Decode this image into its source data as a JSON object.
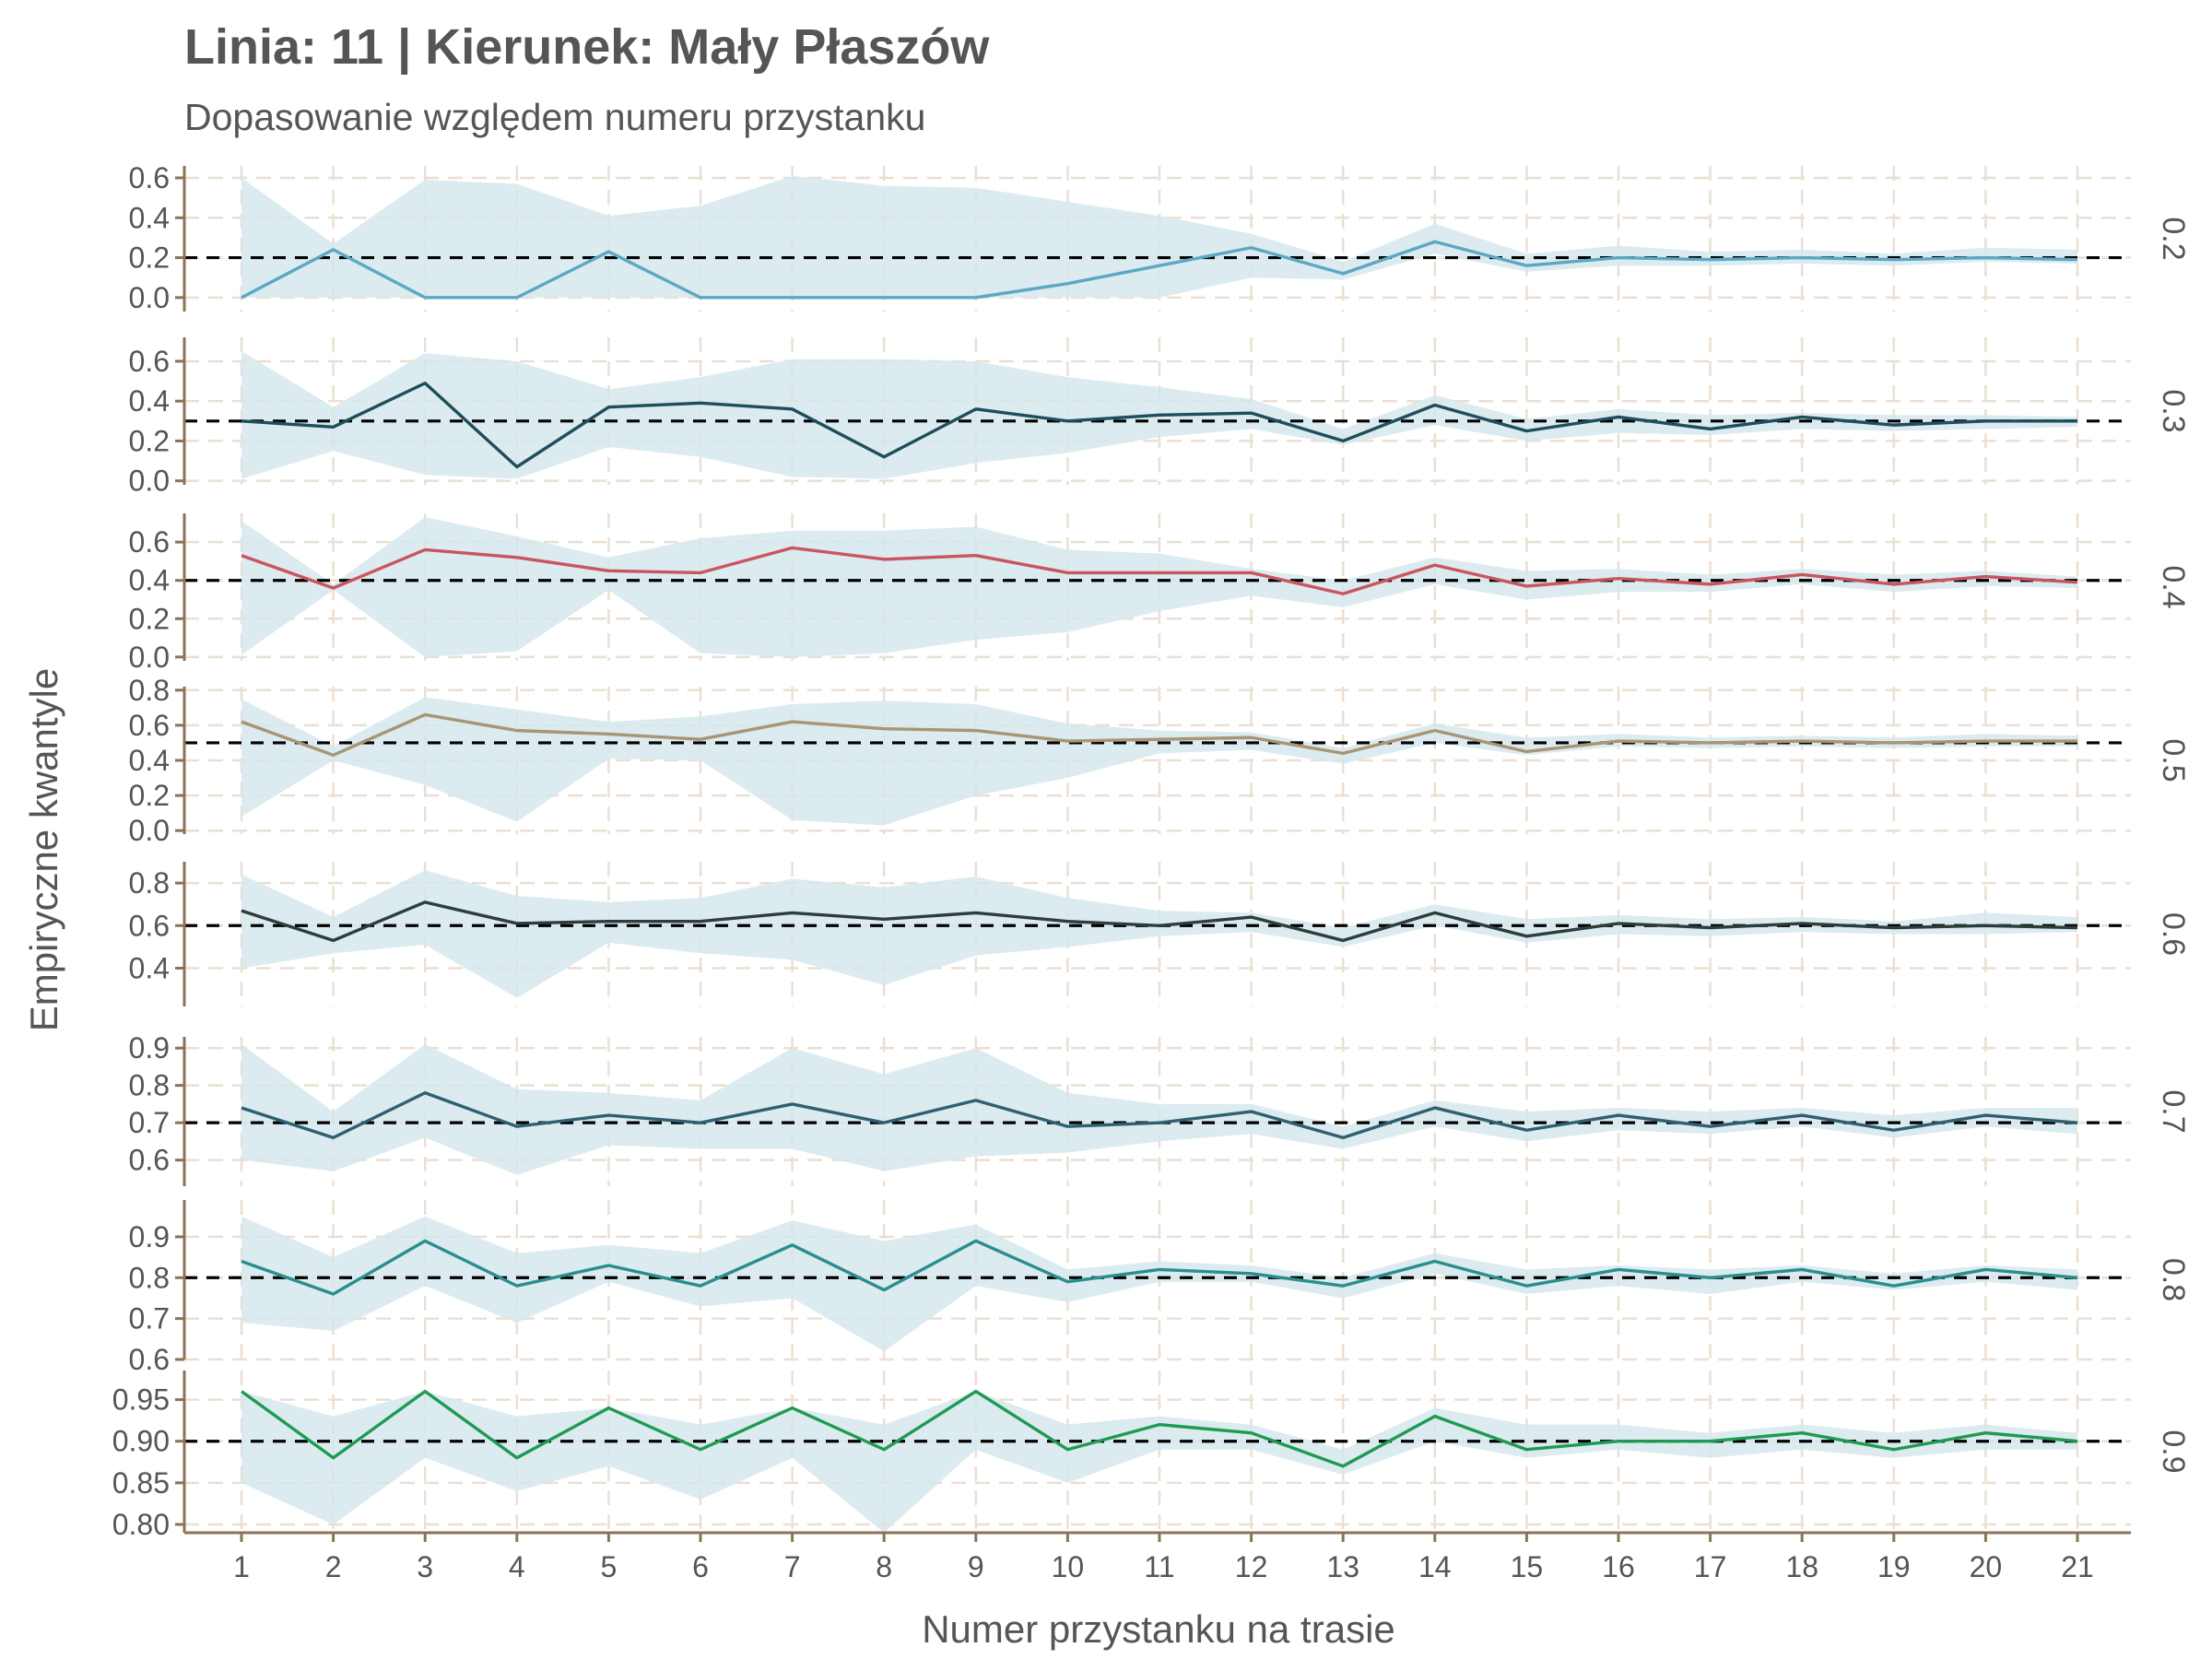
{
  "chart_data": {
    "type": "line",
    "title": "Linia: 11 | Kierunek: Mały Płaszów",
    "subtitle": "Dopasowanie względem numeru przystanku",
    "xlabel": "Numer przystanku na trasie",
    "ylabel": "Empiryczne kwantyle",
    "x": [
      1,
      2,
      3,
      4,
      5,
      6,
      7,
      8,
      9,
      10,
      11,
      12,
      13,
      14,
      15,
      16,
      17,
      18,
      19,
      20,
      21
    ],
    "grid": true,
    "colors": {
      "band": "#d6e8ec",
      "grid": "#eadfd2",
      "axis": "#8b7355",
      "reference": "#000000",
      "text": "#555555"
    },
    "panels": [
      {
        "label": "0.2",
        "reference": 0.2,
        "color": "#5ba8c4",
        "ylim": [
          -0.07,
          0.66
        ],
        "yticks": [
          {
            "v": 0.0,
            "t": "0.0"
          },
          {
            "v": 0.2,
            "t": "0.2"
          },
          {
            "v": 0.4,
            "t": "0.4"
          },
          {
            "v": 0.6,
            "t": "0.6"
          }
        ],
        "values": [
          0.0,
          0.24,
          0.0,
          0.0,
          0.23,
          0.0,
          0.0,
          0.0,
          0.0,
          0.07,
          0.16,
          0.25,
          0.12,
          0.28,
          0.16,
          0.2,
          0.19,
          0.2,
          0.19,
          0.2,
          0.19
        ],
        "lower": [
          0.0,
          0.0,
          0.0,
          0.0,
          0.0,
          0.0,
          0.0,
          0.0,
          0.0,
          0.0,
          0.0,
          0.1,
          0.09,
          0.22,
          0.13,
          0.16,
          0.16,
          0.17,
          0.16,
          0.18,
          0.17
        ],
        "upper": [
          0.6,
          0.27,
          0.59,
          0.57,
          0.41,
          0.46,
          0.61,
          0.56,
          0.55,
          0.48,
          0.41,
          0.32,
          0.18,
          0.37,
          0.22,
          0.26,
          0.23,
          0.24,
          0.22,
          0.25,
          0.24
        ]
      },
      {
        "label": "0.3",
        "reference": 0.3,
        "color": "#1e4d5c",
        "ylim": [
          -0.02,
          0.72
        ],
        "yticks": [
          {
            "v": 0.0,
            "t": "0.0"
          },
          {
            "v": 0.2,
            "t": "0.2"
          },
          {
            "v": 0.4,
            "t": "0.4"
          },
          {
            "v": 0.6,
            "t": "0.6"
          }
        ],
        "values": [
          0.3,
          0.27,
          0.49,
          0.07,
          0.37,
          0.39,
          0.36,
          0.12,
          0.36,
          0.3,
          0.33,
          0.34,
          0.2,
          0.38,
          0.25,
          0.32,
          0.26,
          0.32,
          0.28,
          0.3,
          0.3
        ],
        "lower": [
          0.01,
          0.15,
          0.03,
          0.01,
          0.17,
          0.12,
          0.02,
          0.01,
          0.09,
          0.14,
          0.22,
          0.26,
          0.18,
          0.28,
          0.2,
          0.24,
          0.23,
          0.26,
          0.25,
          0.26,
          0.27
        ],
        "upper": [
          0.65,
          0.37,
          0.64,
          0.6,
          0.46,
          0.52,
          0.61,
          0.61,
          0.6,
          0.52,
          0.47,
          0.41,
          0.26,
          0.43,
          0.31,
          0.36,
          0.33,
          0.34,
          0.33,
          0.33,
          0.32
        ]
      },
      {
        "label": "0.4",
        "reference": 0.4,
        "color": "#c95560",
        "ylim": [
          -0.02,
          0.75
        ],
        "yticks": [
          {
            "v": 0.0,
            "t": "0.0"
          },
          {
            "v": 0.2,
            "t": "0.2"
          },
          {
            "v": 0.4,
            "t": "0.4"
          },
          {
            "v": 0.6,
            "t": "0.6"
          }
        ],
        "values": [
          0.53,
          0.36,
          0.56,
          0.52,
          0.45,
          0.44,
          0.57,
          0.51,
          0.53,
          0.44,
          0.44,
          0.44,
          0.33,
          0.48,
          0.37,
          0.41,
          0.38,
          0.43,
          0.38,
          0.42,
          0.39
        ],
        "lower": [
          0.01,
          0.35,
          0.0,
          0.03,
          0.35,
          0.02,
          0.0,
          0.02,
          0.09,
          0.13,
          0.24,
          0.32,
          0.26,
          0.38,
          0.3,
          0.34,
          0.34,
          0.38,
          0.34,
          0.37,
          0.36
        ],
        "upper": [
          0.71,
          0.38,
          0.73,
          0.63,
          0.52,
          0.62,
          0.66,
          0.66,
          0.68,
          0.56,
          0.54,
          0.46,
          0.4,
          0.52,
          0.45,
          0.46,
          0.43,
          0.46,
          0.43,
          0.45,
          0.42
        ]
      },
      {
        "label": "0.5",
        "reference": 0.5,
        "color": "#a89574",
        "ylim": [
          -0.02,
          0.82
        ],
        "yticks": [
          {
            "v": 0.0,
            "t": "0.0"
          },
          {
            "v": 0.2,
            "t": "0.2"
          },
          {
            "v": 0.4,
            "t": "0.4"
          },
          {
            "v": 0.6,
            "t": "0.6"
          },
          {
            "v": 0.8,
            "t": "0.8"
          }
        ],
        "values": [
          0.62,
          0.43,
          0.66,
          0.57,
          0.55,
          0.52,
          0.62,
          0.58,
          0.57,
          0.51,
          0.52,
          0.53,
          0.44,
          0.57,
          0.45,
          0.51,
          0.5,
          0.51,
          0.5,
          0.51,
          0.51
        ],
        "lower": [
          0.08,
          0.4,
          0.26,
          0.05,
          0.41,
          0.4,
          0.06,
          0.03,
          0.2,
          0.3,
          0.44,
          0.46,
          0.38,
          0.5,
          0.43,
          0.48,
          0.47,
          0.48,
          0.47,
          0.48,
          0.48
        ],
        "upper": [
          0.75,
          0.48,
          0.76,
          0.69,
          0.62,
          0.65,
          0.72,
          0.74,
          0.72,
          0.61,
          0.57,
          0.56,
          0.47,
          0.61,
          0.53,
          0.55,
          0.53,
          0.54,
          0.53,
          0.55,
          0.54
        ]
      },
      {
        "label": "0.6",
        "reference": 0.6,
        "color": "#2c3e3c",
        "ylim": [
          0.22,
          0.9
        ],
        "yticks": [
          {
            "v": 0.4,
            "t": "0.4"
          },
          {
            "v": 0.6,
            "t": "0.6"
          },
          {
            "v": 0.8,
            "t": "0.8"
          }
        ],
        "values": [
          0.67,
          0.53,
          0.71,
          0.61,
          0.62,
          0.62,
          0.66,
          0.63,
          0.66,
          0.62,
          0.6,
          0.64,
          0.53,
          0.66,
          0.55,
          0.61,
          0.59,
          0.61,
          0.59,
          0.6,
          0.59
        ],
        "lower": [
          0.4,
          0.47,
          0.51,
          0.26,
          0.52,
          0.47,
          0.44,
          0.32,
          0.46,
          0.5,
          0.55,
          0.57,
          0.5,
          0.6,
          0.52,
          0.56,
          0.55,
          0.57,
          0.56,
          0.56,
          0.57
        ],
        "upper": [
          0.84,
          0.64,
          0.86,
          0.74,
          0.71,
          0.73,
          0.82,
          0.78,
          0.83,
          0.73,
          0.67,
          0.66,
          0.59,
          0.7,
          0.63,
          0.65,
          0.63,
          0.64,
          0.62,
          0.66,
          0.64
        ]
      },
      {
        "label": "0.7",
        "reference": 0.7,
        "color": "#2f5f73",
        "ylim": [
          0.53,
          0.93
        ],
        "yticks": [
          {
            "v": 0.6,
            "t": "0.6"
          },
          {
            "v": 0.7,
            "t": "0.7"
          },
          {
            "v": 0.8,
            "t": "0.8"
          },
          {
            "v": 0.9,
            "t": "0.9"
          }
        ],
        "values": [
          0.74,
          0.66,
          0.78,
          0.69,
          0.72,
          0.7,
          0.75,
          0.7,
          0.76,
          0.69,
          0.7,
          0.73,
          0.66,
          0.74,
          0.68,
          0.72,
          0.69,
          0.72,
          0.68,
          0.72,
          0.7
        ],
        "lower": [
          0.6,
          0.57,
          0.66,
          0.56,
          0.64,
          0.63,
          0.63,
          0.57,
          0.61,
          0.62,
          0.65,
          0.67,
          0.63,
          0.69,
          0.65,
          0.68,
          0.67,
          0.69,
          0.66,
          0.69,
          0.67
        ],
        "upper": [
          0.91,
          0.73,
          0.91,
          0.79,
          0.78,
          0.76,
          0.9,
          0.83,
          0.9,
          0.78,
          0.75,
          0.75,
          0.69,
          0.76,
          0.73,
          0.74,
          0.73,
          0.74,
          0.72,
          0.74,
          0.74
        ]
      },
      {
        "label": "0.8",
        "reference": 0.8,
        "color": "#2a8e8e",
        "ylim": [
          0.6,
          0.99
        ],
        "yticks": [
          {
            "v": 0.6,
            "t": "0.6"
          },
          {
            "v": 0.7,
            "t": "0.7"
          },
          {
            "v": 0.8,
            "t": "0.8"
          },
          {
            "v": 0.9,
            "t": "0.9"
          }
        ],
        "values": [
          0.84,
          0.76,
          0.89,
          0.78,
          0.83,
          0.78,
          0.88,
          0.77,
          0.89,
          0.79,
          0.82,
          0.81,
          0.78,
          0.84,
          0.78,
          0.82,
          0.8,
          0.82,
          0.78,
          0.82,
          0.8
        ],
        "lower": [
          0.69,
          0.67,
          0.78,
          0.69,
          0.79,
          0.73,
          0.75,
          0.62,
          0.78,
          0.74,
          0.79,
          0.79,
          0.75,
          0.81,
          0.76,
          0.78,
          0.76,
          0.79,
          0.77,
          0.79,
          0.77
        ],
        "upper": [
          0.95,
          0.85,
          0.95,
          0.86,
          0.88,
          0.86,
          0.94,
          0.89,
          0.93,
          0.82,
          0.84,
          0.83,
          0.8,
          0.86,
          0.82,
          0.83,
          0.82,
          0.83,
          0.81,
          0.83,
          0.82
        ]
      },
      {
        "label": "0.9",
        "reference": 0.9,
        "color": "#1f9a52",
        "ylim": [
          0.79,
          0.985
        ],
        "yticks": [
          {
            "v": 0.8,
            "t": "0.80"
          },
          {
            "v": 0.85,
            "t": "0.85"
          },
          {
            "v": 0.9,
            "t": "0.90"
          },
          {
            "v": 0.95,
            "t": "0.95"
          }
        ],
        "values": [
          0.96,
          0.88,
          0.96,
          0.88,
          0.94,
          0.89,
          0.94,
          0.89,
          0.96,
          0.89,
          0.92,
          0.91,
          0.87,
          0.93,
          0.89,
          0.9,
          0.9,
          0.91,
          0.89,
          0.91,
          0.9
        ],
        "lower": [
          0.85,
          0.8,
          0.88,
          0.84,
          0.87,
          0.83,
          0.88,
          0.79,
          0.89,
          0.85,
          0.89,
          0.89,
          0.86,
          0.9,
          0.88,
          0.89,
          0.88,
          0.89,
          0.88,
          0.89,
          0.89
        ],
        "upper": [
          0.96,
          0.93,
          0.96,
          0.93,
          0.94,
          0.92,
          0.94,
          0.92,
          0.96,
          0.92,
          0.93,
          0.92,
          0.89,
          0.94,
          0.92,
          0.92,
          0.91,
          0.92,
          0.91,
          0.92,
          0.91
        ]
      }
    ]
  }
}
